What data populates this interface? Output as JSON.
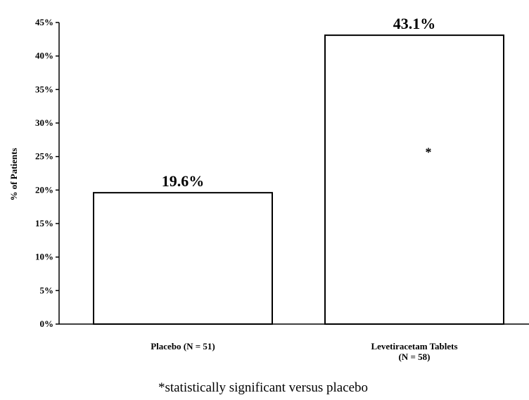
{
  "chart_data": {
    "type": "bar",
    "categories": [
      "Placebo (N = 51)",
      "Levetiracetam Tablets (N = 58)"
    ],
    "category_lines": [
      [
        "Placebo (N = 51)"
      ],
      [
        "Levetiracetam Tablets",
        "(N = 58)"
      ]
    ],
    "values": [
      19.6,
      43.1
    ],
    "value_labels": [
      "19.6%",
      "43.1%"
    ],
    "markers": [
      "",
      "*"
    ],
    "ylabel": "% of Patients",
    "xlabel": "",
    "title": "",
    "ylim": [
      0,
      45
    ],
    "yticks": [
      "0%",
      "5%",
      "10%",
      "15%",
      "20%",
      "25%",
      "30%",
      "35%",
      "40%",
      "45%"
    ],
    "grid": false,
    "bar_fill": "#ffffff",
    "bar_stroke": "#000000",
    "footnote": "*statistically significant versus placebo"
  }
}
